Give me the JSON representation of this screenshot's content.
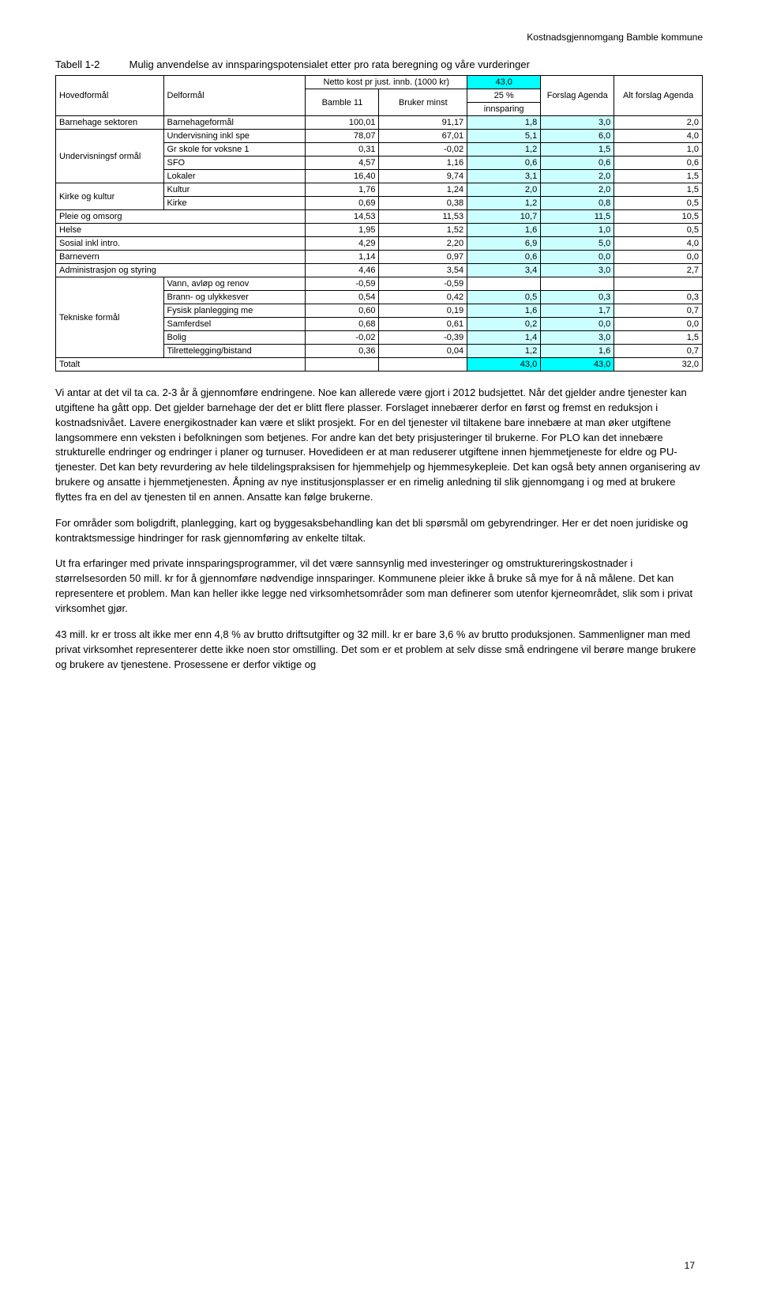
{
  "header_right": "Kostnadsgjennomgang Bamble kommune",
  "table_label": {
    "prefix": "Tabell 1-2",
    "title": "Mulig anvendelse av innsparingspotensialet etter pro rata beregning og våre vurderinger"
  },
  "th": {
    "hoved": "Hovedformål",
    "del": "Delformål",
    "netto": "Netto kost pr just. innb. (1000 kr)",
    "bamble": "Bamble 11",
    "bruker": "Bruker minst",
    "val43": "43,0",
    "pct25": "25 %",
    "innsparing": "innsparing",
    "forslag": "Forslag Agenda",
    "alt": "Alt forslag Agenda"
  },
  "rows": [
    {
      "h": "Barnehage sektoren",
      "d": "Barnehageformål",
      "c": [
        "100,01",
        "91,17",
        "1,8",
        "3,0",
        "2,0"
      ]
    },
    {
      "h": "Undervisningsf ormål",
      "d": "Undervisning inkl spe",
      "c": [
        "78,07",
        "67,01",
        "5,1",
        "6,0",
        "4,0"
      ]
    },
    {
      "d": "Gr skole for voksne 1",
      "c": [
        "0,31",
        "-0,02",
        "1,2",
        "1,5",
        "1,0"
      ]
    },
    {
      "d": "SFO",
      "c": [
        "4,57",
        "1,16",
        "0,6",
        "0,6",
        "0,6"
      ]
    },
    {
      "d": "Lokaler",
      "c": [
        "16,40",
        "9,74",
        "3,1",
        "2,0",
        "1,5"
      ]
    },
    {
      "h": "Kirke og kultur",
      "d": "Kultur",
      "c": [
        "1,76",
        "1,24",
        "2,0",
        "2,0",
        "1,5"
      ]
    },
    {
      "d": "Kirke",
      "c": [
        "0,69",
        "0,38",
        "1,2",
        "0,8",
        "0,5"
      ]
    },
    {
      "h": "Pleie og omsorg",
      "span": true,
      "c": [
        "14,53",
        "11,53",
        "10,7",
        "11,5",
        "10,5"
      ]
    },
    {
      "h": "Helse",
      "span": true,
      "c": [
        "1,95",
        "1,52",
        "1,6",
        "1,0",
        "0,5"
      ]
    },
    {
      "h": "Sosial inkl intro.",
      "span": true,
      "c": [
        "4,29",
        "2,20",
        "6,9",
        "5,0",
        "4,0"
      ]
    },
    {
      "h": "Barnevern",
      "span": true,
      "c": [
        "1,14",
        "0,97",
        "0,6",
        "0,0",
        "0,0"
      ]
    },
    {
      "h": "Administrasjon og styring",
      "span": true,
      "c": [
        "4,46",
        "3,54",
        "3,4",
        "3,0",
        "2,7"
      ]
    },
    {
      "h": "Tekniske formål",
      "d": "Vann, avløp og renov",
      "c": [
        "-0,59",
        "-0,59",
        "",
        "",
        ""
      ]
    },
    {
      "d": "Brann- og ulykkesver",
      "c": [
        "0,54",
        "0,42",
        "0,5",
        "0,3",
        "0,3"
      ]
    },
    {
      "d": "Fysisk planlegging me",
      "c": [
        "0,60",
        "0,19",
        "1,6",
        "1,7",
        "0,7"
      ]
    },
    {
      "d": "Samferdsel",
      "c": [
        "0,68",
        "0,61",
        "0,2",
        "0,0",
        "0,0"
      ]
    },
    {
      "d": "Bolig",
      "c": [
        "-0,02",
        "-0,39",
        "1,4",
        "3,0",
        "1,5"
      ]
    },
    {
      "d": "Tilrettelegging/bistand",
      "c": [
        "0,36",
        "0,04",
        "1,2",
        "1,6",
        "0,7"
      ]
    },
    {
      "h": "Totalt",
      "span": true,
      "c": [
        "",
        "",
        "43,0",
        "43,0",
        "32,0"
      ]
    }
  ],
  "paragraphs": [
    "Vi antar at det vil ta ca. 2-3 år å gjennomføre endringene. Noe kan allerede være gjort i 2012 budsjettet. Når det gjelder andre tjenester kan utgiftene ha gått opp. Det gjelder barnehage der det er blitt flere plasser. Forslaget innebærer derfor en først og fremst en reduksjon i kostnadsnivået. Lavere energikostnader kan være et slikt prosjekt. For en del tjenester vil tiltakene bare innebære at man øker utgiftene langsommere enn veksten i befolkningen som betjenes. For andre kan det bety prisjusteringer til brukerne. For PLO kan det innebære strukturelle endringer og endringer i planer og turnuser. Hovedideen er at man reduserer utgiftene innen hjemmetjeneste for eldre og PU-tjenester. Det kan bety revurdering av hele tildelingspraksisen for hjemmehjelp og hjemmesykepleie. Det kan også bety annen organisering av brukere og ansatte i hjemmetjenesten. Åpning av nye institusjonsplasser er en rimelig anledning til slik gjennomgang i og med at brukere flyttes fra en del av tjenesten til en annen. Ansatte kan følge brukerne.",
    "For områder som boligdrift, planlegging, kart og byggesaksbehandling kan det bli spørsmål om gebyrendringer. Her er det noen juridiske og kontraktsmessige hindringer for rask gjennomføring av enkelte tiltak.",
    "Ut fra erfaringer med private innsparingsprogrammer, vil det være sannsynlig med investeringer og omstruktureringskostnader i størrelsesorden 50 mill. kr for å gjennomføre nødvendige innsparinger. Kommunene pleier ikke å bruke så mye for å nå målene. Det kan representere et problem. Man kan heller ikke legge ned virksomhetsområder som man definerer som utenfor kjerneområdet, slik som i privat virksomhet gjør.",
    "43 mill. kr er tross alt ikke mer enn 4,8 % av brutto driftsutgifter og 32 mill. kr er bare 3,6 % av brutto produksjonen. Sammenligner man med privat virksomhet representerer dette ikke noen stor omstilling. Det som er et problem at selv disse små endringene vil berøre mange brukere og brukere av tjenestene. Prosessene er derfor viktige og"
  ],
  "page_num": "17",
  "style": {
    "hi_cyan": "#00ffff",
    "hi_pale": "#ccffff",
    "col_widths": [
      "110",
      "145",
      "75",
      "90",
      "75",
      "75",
      "90"
    ]
  }
}
